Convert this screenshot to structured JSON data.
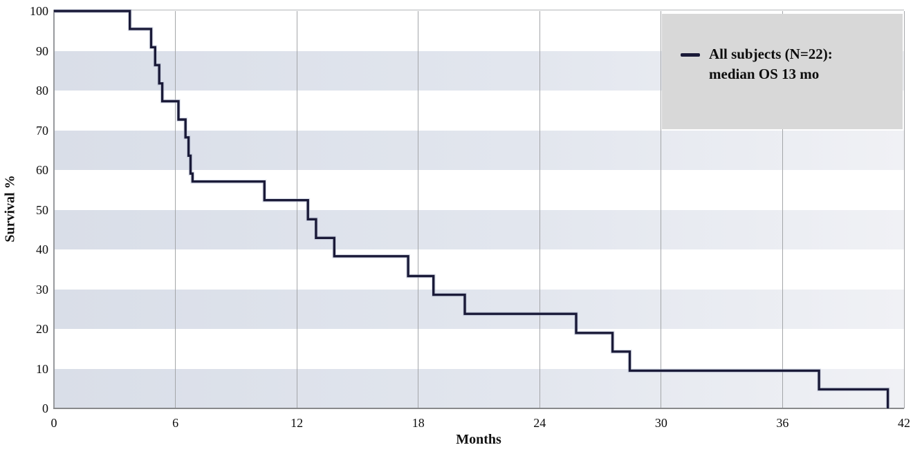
{
  "chart_data": {
    "type": "line",
    "subtype": "kaplan-meier-step-curve",
    "title": "",
    "xlabel": "Months",
    "ylabel": "Survival %",
    "xlim": [
      0,
      42
    ],
    "ylim": [
      0,
      100
    ],
    "x_ticks": [
      0,
      6,
      12,
      18,
      24,
      30,
      36,
      42
    ],
    "y_ticks": [
      100,
      90,
      80,
      70,
      60,
      50,
      40,
      30,
      20,
      10,
      0
    ],
    "grid": "vertical gridlines at each x tick; alternating horizontal shaded bands",
    "shaded_bands": [
      [
        80,
        90
      ],
      [
        60,
        70
      ],
      [
        40,
        50
      ],
      [
        20,
        30
      ],
      [
        0,
        10
      ]
    ],
    "legend_position": "top-right",
    "series": [
      {
        "name": "All subjects (N=22): median OS 13 mo",
        "color": "#1a1a38",
        "step_points": [
          [
            0,
            100
          ],
          [
            3.75,
            100
          ],
          [
            3.75,
            95.5
          ],
          [
            4.8,
            95.5
          ],
          [
            4.8,
            90.9
          ],
          [
            5.0,
            90.9
          ],
          [
            5.0,
            86.4
          ],
          [
            5.2,
            86.4
          ],
          [
            5.2,
            81.8
          ],
          [
            5.35,
            81.8
          ],
          [
            5.35,
            77.3
          ],
          [
            6.15,
            77.3
          ],
          [
            6.15,
            72.7
          ],
          [
            6.5,
            72.7
          ],
          [
            6.5,
            68.2
          ],
          [
            6.65,
            68.2
          ],
          [
            6.65,
            63.6
          ],
          [
            6.75,
            63.6
          ],
          [
            6.75,
            59.1
          ],
          [
            6.85,
            59.1
          ],
          [
            6.85,
            57.1
          ],
          [
            10.4,
            57.1
          ],
          [
            10.4,
            52.4
          ],
          [
            12.55,
            52.4
          ],
          [
            12.55,
            47.6
          ],
          [
            12.95,
            47.6
          ],
          [
            12.95,
            42.9
          ],
          [
            13.85,
            42.9
          ],
          [
            13.85,
            38.3
          ],
          [
            17.5,
            38.3
          ],
          [
            17.5,
            33.3
          ],
          [
            18.75,
            33.3
          ],
          [
            18.75,
            28.6
          ],
          [
            20.3,
            28.6
          ],
          [
            20.3,
            23.8
          ],
          [
            25.8,
            23.8
          ],
          [
            25.8,
            19.0
          ],
          [
            27.6,
            19.0
          ],
          [
            27.6,
            14.3
          ],
          [
            28.45,
            14.3
          ],
          [
            28.45,
            9.5
          ],
          [
            37.8,
            9.5
          ],
          [
            37.8,
            4.8
          ],
          [
            41.2,
            4.8
          ],
          [
            41.2,
            0
          ]
        ]
      }
    ]
  },
  "legend": {
    "line1": "All subjects (N=22):",
    "line2": "median OS 13 mo",
    "swatch": "dash-icon"
  },
  "colors": {
    "curve": "#1a1a38",
    "curve_halo": "#b8c0d8",
    "band_left": "#d9dee8",
    "band_right": "#f0f1f5",
    "gridline": "#a3a5a8",
    "axis_line": "#8f9194",
    "plot_border": "#b4b6b9",
    "legend_background": "#d8d8d8",
    "text": "#111111"
  }
}
